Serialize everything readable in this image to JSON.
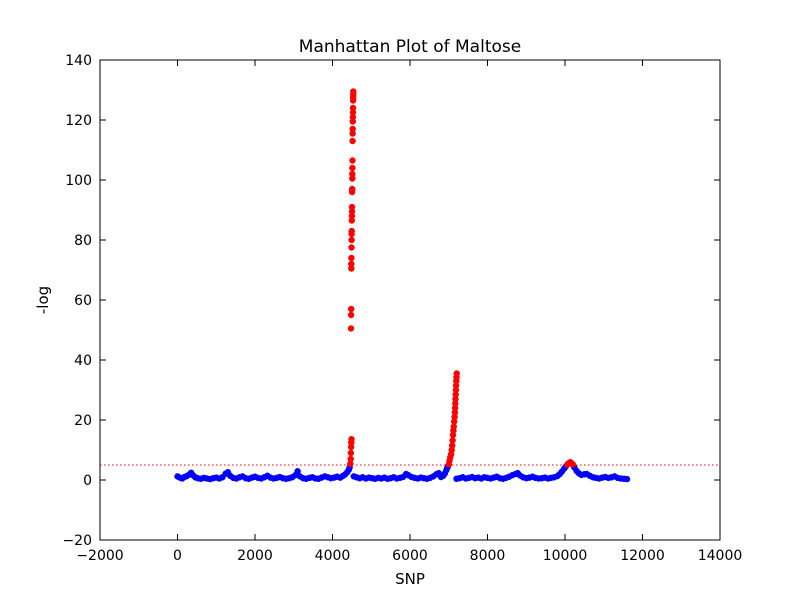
{
  "chart_data": {
    "type": "scatter",
    "title": "Manhattan Plot of Maltose",
    "xlabel": "SNP",
    "ylabel": "-log",
    "xlim": [
      -2000,
      14000
    ],
    "ylim": [
      -20,
      140
    ],
    "xticks": [
      -2000,
      0,
      2000,
      4000,
      6000,
      8000,
      10000,
      12000,
      14000
    ],
    "yticks": [
      -20,
      0,
      20,
      40,
      60,
      80,
      100,
      120,
      140
    ],
    "threshold": 5,
    "colors": {
      "below_threshold": "#0000ff",
      "above_threshold": "#ff0000",
      "threshold_line": "#ff0000"
    },
    "series": [
      {
        "color": "#0000ff",
        "points": [
          [
            0,
            1.2
          ],
          [
            60,
            0.8
          ],
          [
            120,
            0.5
          ],
          [
            180,
            1.0
          ],
          [
            240,
            1.3
          ],
          [
            300,
            1.8
          ],
          [
            350,
            2.4
          ],
          [
            400,
            1.6
          ],
          [
            460,
            0.9
          ],
          [
            520,
            0.6
          ],
          [
            600,
            0.4
          ],
          [
            680,
            0.7
          ],
          [
            760,
            0.5
          ],
          [
            840,
            0.3
          ],
          [
            920,
            0.6
          ],
          [
            1000,
            0.8
          ],
          [
            1080,
            0.5
          ],
          [
            1160,
            0.9
          ],
          [
            1240,
            2.1
          ],
          [
            1300,
            2.6
          ],
          [
            1360,
            1.4
          ],
          [
            1440,
            0.7
          ],
          [
            1520,
            0.5
          ],
          [
            1600,
            0.9
          ],
          [
            1680,
            1.2
          ],
          [
            1760,
            0.6
          ],
          [
            1840,
            0.4
          ],
          [
            1920,
            0.8
          ],
          [
            2000,
            1.1
          ],
          [
            2080,
            0.7
          ],
          [
            2160,
            0.5
          ],
          [
            2240,
            0.9
          ],
          [
            2320,
            1.4
          ],
          [
            2400,
            0.8
          ],
          [
            2480,
            0.5
          ],
          [
            2560,
            0.7
          ],
          [
            2640,
            1.0
          ],
          [
            2720,
            0.6
          ],
          [
            2800,
            0.4
          ],
          [
            2880,
            0.6
          ],
          [
            2960,
            0.9
          ],
          [
            3040,
            1.6
          ],
          [
            3100,
            2.9
          ],
          [
            3160,
            1.2
          ],
          [
            3240,
            0.6
          ],
          [
            3320,
            0.4
          ],
          [
            3400,
            0.7
          ],
          [
            3480,
            0.9
          ],
          [
            3560,
            0.5
          ],
          [
            3640,
            0.4
          ],
          [
            3720,
            0.8
          ],
          [
            3800,
            1.2
          ],
          [
            3880,
            0.9
          ],
          [
            3960,
            0.6
          ],
          [
            4040,
            0.8
          ],
          [
            4120,
            1.1
          ],
          [
            4200,
            0.8
          ],
          [
            4260,
            1.3
          ],
          [
            4320,
            1.8
          ],
          [
            4380,
            2.6
          ],
          [
            4420,
            3.4
          ],
          [
            4440,
            4.2
          ],
          [
            4550,
            1.2
          ],
          [
            4620,
            0.9
          ],
          [
            4700,
            0.6
          ],
          [
            4780,
            0.9
          ],
          [
            4860,
            0.5
          ],
          [
            4940,
            0.8
          ],
          [
            5020,
            0.6
          ],
          [
            5100,
            0.4
          ],
          [
            5180,
            0.7
          ],
          [
            5260,
            0.5
          ],
          [
            5340,
            0.8
          ],
          [
            5420,
            0.4
          ],
          [
            5500,
            0.6
          ],
          [
            5580,
            0.9
          ],
          [
            5660,
            0.5
          ],
          [
            5740,
            0.7
          ],
          [
            5820,
            1.0
          ],
          [
            5900,
            2.0
          ],
          [
            5960,
            1.6
          ],
          [
            6040,
            1.0
          ],
          [
            6120,
            0.7
          ],
          [
            6200,
            0.5
          ],
          [
            6280,
            0.8
          ],
          [
            6360,
            0.6
          ],
          [
            6440,
            0.4
          ],
          [
            6520,
            0.7
          ],
          [
            6600,
            1.2
          ],
          [
            6680,
            1.9
          ],
          [
            6740,
            2.3
          ],
          [
            6800,
            1.0
          ],
          [
            6860,
            1.4
          ],
          [
            6900,
            2.2
          ],
          [
            6940,
            3.3
          ],
          [
            6960,
            4.0
          ],
          [
            6980,
            4.6
          ],
          [
            7200,
            0.4
          ],
          [
            7280,
            0.6
          ],
          [
            7360,
            0.9
          ],
          [
            7440,
            0.5
          ],
          [
            7520,
            0.7
          ],
          [
            7600,
            1.0
          ],
          [
            7680,
            0.6
          ],
          [
            7760,
            0.8
          ],
          [
            7840,
            0.5
          ],
          [
            7920,
            0.9
          ],
          [
            8000,
            0.7
          ],
          [
            8080,
            0.5
          ],
          [
            8160,
            0.8
          ],
          [
            8240,
            1.1
          ],
          [
            8320,
            0.6
          ],
          [
            8400,
            0.4
          ],
          [
            8480,
            0.7
          ],
          [
            8560,
            1.1
          ],
          [
            8640,
            1.6
          ],
          [
            8720,
            2.0
          ],
          [
            8780,
            2.3
          ],
          [
            8840,
            1.5
          ],
          [
            8920,
            0.9
          ],
          [
            9000,
            0.6
          ],
          [
            9080,
            0.8
          ],
          [
            9160,
            1.1
          ],
          [
            9240,
            0.7
          ],
          [
            9320,
            0.5
          ],
          [
            9400,
            0.6
          ],
          [
            9480,
            0.8
          ],
          [
            9560,
            0.5
          ],
          [
            9640,
            0.7
          ],
          [
            9720,
            0.9
          ],
          [
            9800,
            1.3
          ],
          [
            9860,
            1.9
          ],
          [
            9920,
            2.8
          ],
          [
            9980,
            3.8
          ],
          [
            10020,
            4.5
          ],
          [
            10240,
            4.2
          ],
          [
            10300,
            3.0
          ],
          [
            10360,
            2.2
          ],
          [
            10420,
            1.7
          ],
          [
            10500,
            1.9
          ],
          [
            10560,
            2.0
          ],
          [
            10640,
            1.4
          ],
          [
            10720,
            0.9
          ],
          [
            10800,
            0.7
          ],
          [
            10880,
            0.5
          ],
          [
            10960,
            0.8
          ],
          [
            11040,
            1.0
          ],
          [
            11120,
            0.7
          ],
          [
            11200,
            0.9
          ],
          [
            11280,
            1.2
          ],
          [
            11360,
            0.7
          ],
          [
            11440,
            0.5
          ],
          [
            11520,
            0.4
          ],
          [
            11600,
            0.3
          ]
        ]
      },
      {
        "color": "#ff0000",
        "points": [
          [
            4460,
            5.4
          ],
          [
            4470,
            7.0
          ],
          [
            4475,
            9.0
          ],
          [
            4480,
            11.0
          ],
          [
            4485,
            12.5
          ],
          [
            4490,
            13.6
          ],
          [
            4478,
            50.5
          ],
          [
            4480,
            55.0
          ],
          [
            4482,
            57.0
          ],
          [
            4484,
            70.5
          ],
          [
            4486,
            72.0
          ],
          [
            4488,
            74.0
          ],
          [
            4490,
            77.5
          ],
          [
            4492,
            80.0
          ],
          [
            4494,
            82.0
          ],
          [
            4496,
            83.0
          ],
          [
            4498,
            86.5
          ],
          [
            4500,
            88.0
          ],
          [
            4502,
            89.5
          ],
          [
            4504,
            91.0
          ],
          [
            4506,
            96.0
          ],
          [
            4508,
            97.0
          ],
          [
            4510,
            100.5
          ],
          [
            4512,
            102.0
          ],
          [
            4514,
            104.0
          ],
          [
            4516,
            106.5
          ],
          [
            4518,
            113.0
          ],
          [
            4520,
            115.5
          ],
          [
            4522,
            117.0
          ],
          [
            4524,
            119.5
          ],
          [
            4526,
            121.0
          ],
          [
            4528,
            122.5
          ],
          [
            4530,
            124.0
          ],
          [
            4532,
            126.5
          ],
          [
            4534,
            127.5
          ],
          [
            4536,
            128.5
          ],
          [
            4538,
            129.5
          ],
          [
            7000,
            5.2
          ],
          [
            7020,
            6.4
          ],
          [
            7040,
            7.6
          ],
          [
            7060,
            8.6
          ],
          [
            7075,
            10.0
          ],
          [
            7090,
            11.5
          ],
          [
            7100,
            13.2
          ],
          [
            7110,
            15.0
          ],
          [
            7120,
            16.5
          ],
          [
            7130,
            17.8
          ],
          [
            7140,
            19.5
          ],
          [
            7150,
            21.0
          ],
          [
            7160,
            22.5
          ],
          [
            7165,
            24.0
          ],
          [
            7170,
            25.5
          ],
          [
            7175,
            27.0
          ],
          [
            7180,
            28.5
          ],
          [
            7185,
            30.0
          ],
          [
            7190,
            31.5
          ],
          [
            7195,
            33.0
          ],
          [
            7200,
            34.2
          ],
          [
            7205,
            35.5
          ],
          [
            10060,
            5.1
          ],
          [
            10080,
            5.4
          ],
          [
            10100,
            5.6
          ],
          [
            10120,
            5.8
          ],
          [
            10140,
            5.9
          ],
          [
            10160,
            5.7
          ],
          [
            10180,
            5.4
          ],
          [
            10200,
            5.2
          ]
        ]
      }
    ],
    "grid": false
  }
}
